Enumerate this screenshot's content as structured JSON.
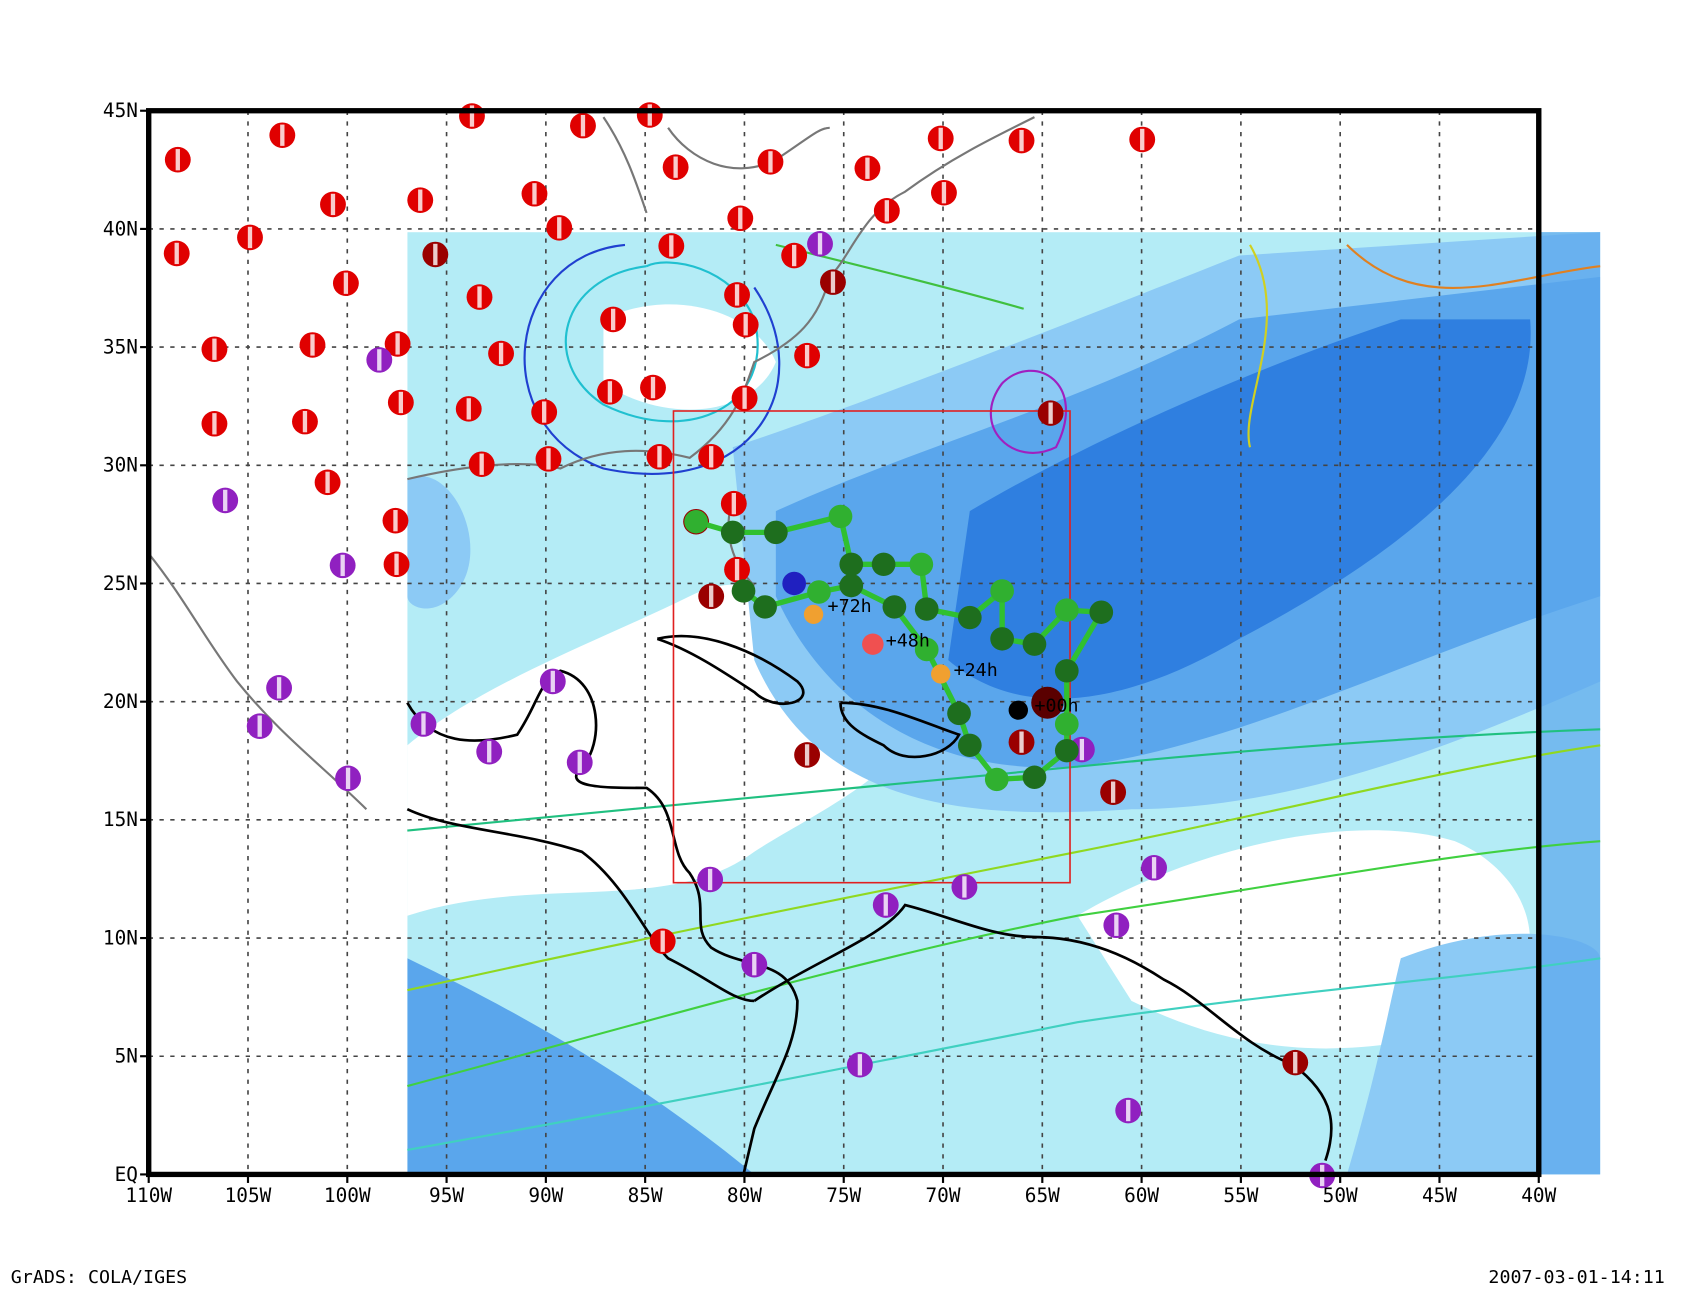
{
  "axes": {
    "lat_labels": [
      "45N",
      "40N",
      "35N",
      "30N",
      "25N",
      "20N",
      "15N",
      "10N",
      "5N",
      "EQ"
    ],
    "lon_labels": [
      "110W",
      "105W",
      "100W",
      "95W",
      "90W",
      "85W",
      "80W",
      "75W",
      "70W",
      "65W",
      "60W",
      "55W",
      "50W",
      "45W",
      "40W"
    ]
  },
  "track_labels": [
    "+72h",
    "+48h",
    "+24h",
    "+00h"
  ],
  "footer": {
    "left": "GrADS: COLA/IGES",
    "right": "2007-03-01-14:11"
  }
}
